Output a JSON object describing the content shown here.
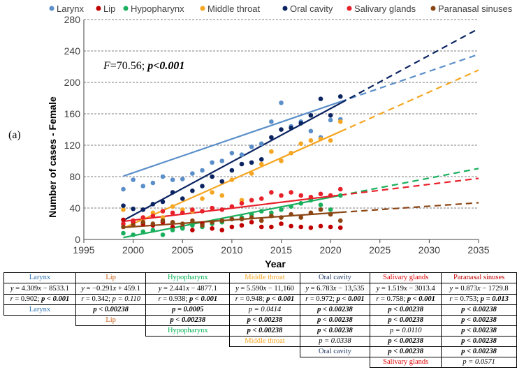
{
  "panel_label": "(a)",
  "chart_data": {
    "type": "scatter",
    "title": "",
    "xlabel": "Year",
    "ylabel": "Number of cases - Female",
    "xlim": [
      1995,
      2035
    ],
    "ylim": [
      0,
      280
    ],
    "xticks": [
      1995,
      2000,
      2005,
      2010,
      2015,
      2020,
      2025,
      2030,
      2035
    ],
    "yticks": [
      0,
      40,
      80,
      120,
      160,
      200,
      240,
      280
    ],
    "grid": "horizontal dashed",
    "legend_position": "top",
    "annotation": {
      "prefix": "F",
      "middle": "=70.56; ",
      "pvalue": "p<0.001"
    },
    "x": [
      1999,
      2000,
      2001,
      2002,
      2003,
      2004,
      2005,
      2006,
      2007,
      2008,
      2009,
      2010,
      2011,
      2012,
      2013,
      2014,
      2015,
      2016,
      2017,
      2018,
      2019,
      2020,
      2021
    ],
    "series": [
      {
        "name": "Larynx",
        "color": "#5b8fc9",
        "fit": [
          4.309,
          -8533.1
        ],
        "values": [
          64,
          76,
          68,
          72,
          80,
          76,
          77,
          84,
          88,
          98,
          100,
          110,
          108,
          118,
          122,
          150,
          174,
          144,
          150,
          138,
          130,
          152,
          153
        ]
      },
      {
        "name": "Lip",
        "color": "#c00000",
        "fit": [
          -0.291,
          459.1
        ],
        "values": [
          25,
          22,
          20,
          18,
          22,
          16,
          15,
          12,
          20,
          14,
          12,
          16,
          18,
          22,
          16,
          16,
          20,
          17,
          16,
          15,
          17,
          16,
          15
        ]
      },
      {
        "name": "Hypopharynx",
        "color": "#1aaf5d",
        "fit": [
          2.441,
          -4877.1
        ],
        "values": [
          8,
          6,
          10,
          12,
          6,
          12,
          14,
          18,
          16,
          20,
          22,
          26,
          28,
          32,
          36,
          34,
          38,
          42,
          46,
          50,
          44,
          38,
          56
        ]
      },
      {
        "name": "Middle throat",
        "color": "#f5a623",
        "fit": [
          5.59,
          -11160
        ],
        "values": [
          38,
          18,
          26,
          34,
          28,
          42,
          38,
          36,
          52,
          60,
          56,
          76,
          50,
          84,
          96,
          112,
          100,
          110,
          122,
          126,
          128,
          126,
          150
        ]
      },
      {
        "name": "Oral cavity",
        "color": "#0b2461",
        "fit": [
          6.783,
          -13535
        ],
        "values": [
          43,
          39,
          38,
          45,
          48,
          60,
          52,
          62,
          68,
          80,
          74,
          88,
          96,
          98,
          102,
          130,
          140,
          142,
          148,
          158,
          179,
          158,
          182
        ]
      },
      {
        "name": "Salivary glands",
        "color": "#e8202a",
        "fit": [
          1.519,
          -3013.4
        ],
        "values": [
          20,
          24,
          28,
          30,
          36,
          34,
          34,
          38,
          36,
          40,
          38,
          42,
          46,
          50,
          52,
          60,
          56,
          60,
          56,
          54,
          58,
          56,
          64
        ]
      },
      {
        "name": "Paranasal sinuses",
        "color": "#8b4513",
        "fit": [
          0.873,
          -1729.8
        ],
        "values": [
          16,
          18,
          22,
          20,
          24,
          22,
          20,
          24,
          18,
          22,
          24,
          26,
          26,
          28,
          24,
          30,
          28,
          32,
          28,
          34,
          38,
          32,
          24
        ]
      }
    ]
  },
  "table": {
    "headers": [
      {
        "label": "Larynx",
        "color": "#2f75b5"
      },
      {
        "label": "Lip",
        "color": "#c55a11"
      },
      {
        "label": "Hypopharynx",
        "color": "#00b050"
      },
      {
        "label": "Middle throat",
        "color": "#f5a623"
      },
      {
        "label": "Oral cavity",
        "color": "#1f3864"
      },
      {
        "label": "Salivary glands",
        "color": "#e00000"
      },
      {
        "label": "Paranasal sinuses",
        "color": "#c00000"
      }
    ],
    "equations": [
      {
        "y": "y",
        "mid": " = 4.309",
        "x": "x",
        "rest": " − 8533.1"
      },
      {
        "y": "y",
        "mid": " = −0.291",
        "x": "x",
        "rest": " + 459.1"
      },
      {
        "y": "y",
        "mid": " = 2.441",
        "x": "x",
        "rest": " − 4877.1"
      },
      {
        "y": "y",
        "mid": " = 5.590",
        "x": "x",
        "rest": " − 11,160"
      },
      {
        "y": "y",
        "mid": " = 6.783",
        "x": "x",
        "rest": " − 13,535"
      },
      {
        "y": "y",
        "mid": " = 1.519",
        "x": "x",
        "rest": " − 3013.4"
      },
      {
        "y": "y",
        "mid": " = 0.873",
        "x": "x",
        "rest": " − 1729.8"
      }
    ],
    "correlations": [
      {
        "r": "r",
        "val": " = 0.902; ",
        "p": "p < 0.001",
        "bold": true
      },
      {
        "r": "r",
        "val": " = 0.342; ",
        "p": "p = 0.110",
        "bold": false
      },
      {
        "r": "r",
        "val": " = 0.938; ",
        "p": "p < 0.001",
        "bold": true
      },
      {
        "r": "r",
        "val": " = 0.948; ",
        "p": "p < 0.001",
        "bold": true
      },
      {
        "r": "r",
        "val": " = 0.972; ",
        "p": "p < 0.001",
        "bold": true
      },
      {
        "r": "r",
        "val": " = 0.758; ",
        "p": "p < 0.001",
        "bold": true
      },
      {
        "r": "r",
        "val": " = 0.753; ",
        "p": "p = 0.013",
        "bold": true
      }
    ],
    "comparisons": [
      {
        "label": "Larynx",
        "color": "#2f75b5",
        "values": [
          {
            "t": "p < 0.00238",
            "b": true
          },
          {
            "t": "p = 0.0005",
            "b": true
          },
          {
            "t": "p = 0.0414",
            "b": false
          },
          {
            "t": "p < 0.00238",
            "b": true
          },
          {
            "t": "p < 0.00238",
            "b": true
          },
          {
            "t": "p < 0.00238",
            "b": true
          }
        ]
      },
      {
        "label": "Lip",
        "color": "#c55a11",
        "values": [
          {
            "t": "p < 0.00238",
            "b": true
          },
          {
            "t": "p < 0.00238",
            "b": true
          },
          {
            "t": "p < 0.00238",
            "b": true
          },
          {
            "t": "p < 0.00238",
            "b": true
          },
          {
            "t": "p < 0.00238",
            "b": true
          }
        ]
      },
      {
        "label": "Hypopharynx",
        "color": "#00b050",
        "values": [
          {
            "t": "p < 0.00238",
            "b": true
          },
          {
            "t": "p < 0.00238",
            "b": true
          },
          {
            "t": "p = 0.0110",
            "b": false
          },
          {
            "t": "p < 0.00238",
            "b": true
          }
        ]
      },
      {
        "label": "Middle throat",
        "color": "#f5a623",
        "values": [
          {
            "t": "p = 0.0338",
            "b": false
          },
          {
            "t": "p < 0.00238",
            "b": true
          },
          {
            "t": "p < 0.00238",
            "b": true
          }
        ]
      },
      {
        "label": "Oral cavity",
        "color": "#1f3864",
        "values": [
          {
            "t": "p < 0.00238",
            "b": true
          },
          {
            "t": "p < 0.00238",
            "b": true
          }
        ]
      },
      {
        "label": "Salivary glands",
        "color": "#e00000",
        "values": [
          {
            "t": "p = 0.0571",
            "b": false
          }
        ]
      }
    ]
  }
}
